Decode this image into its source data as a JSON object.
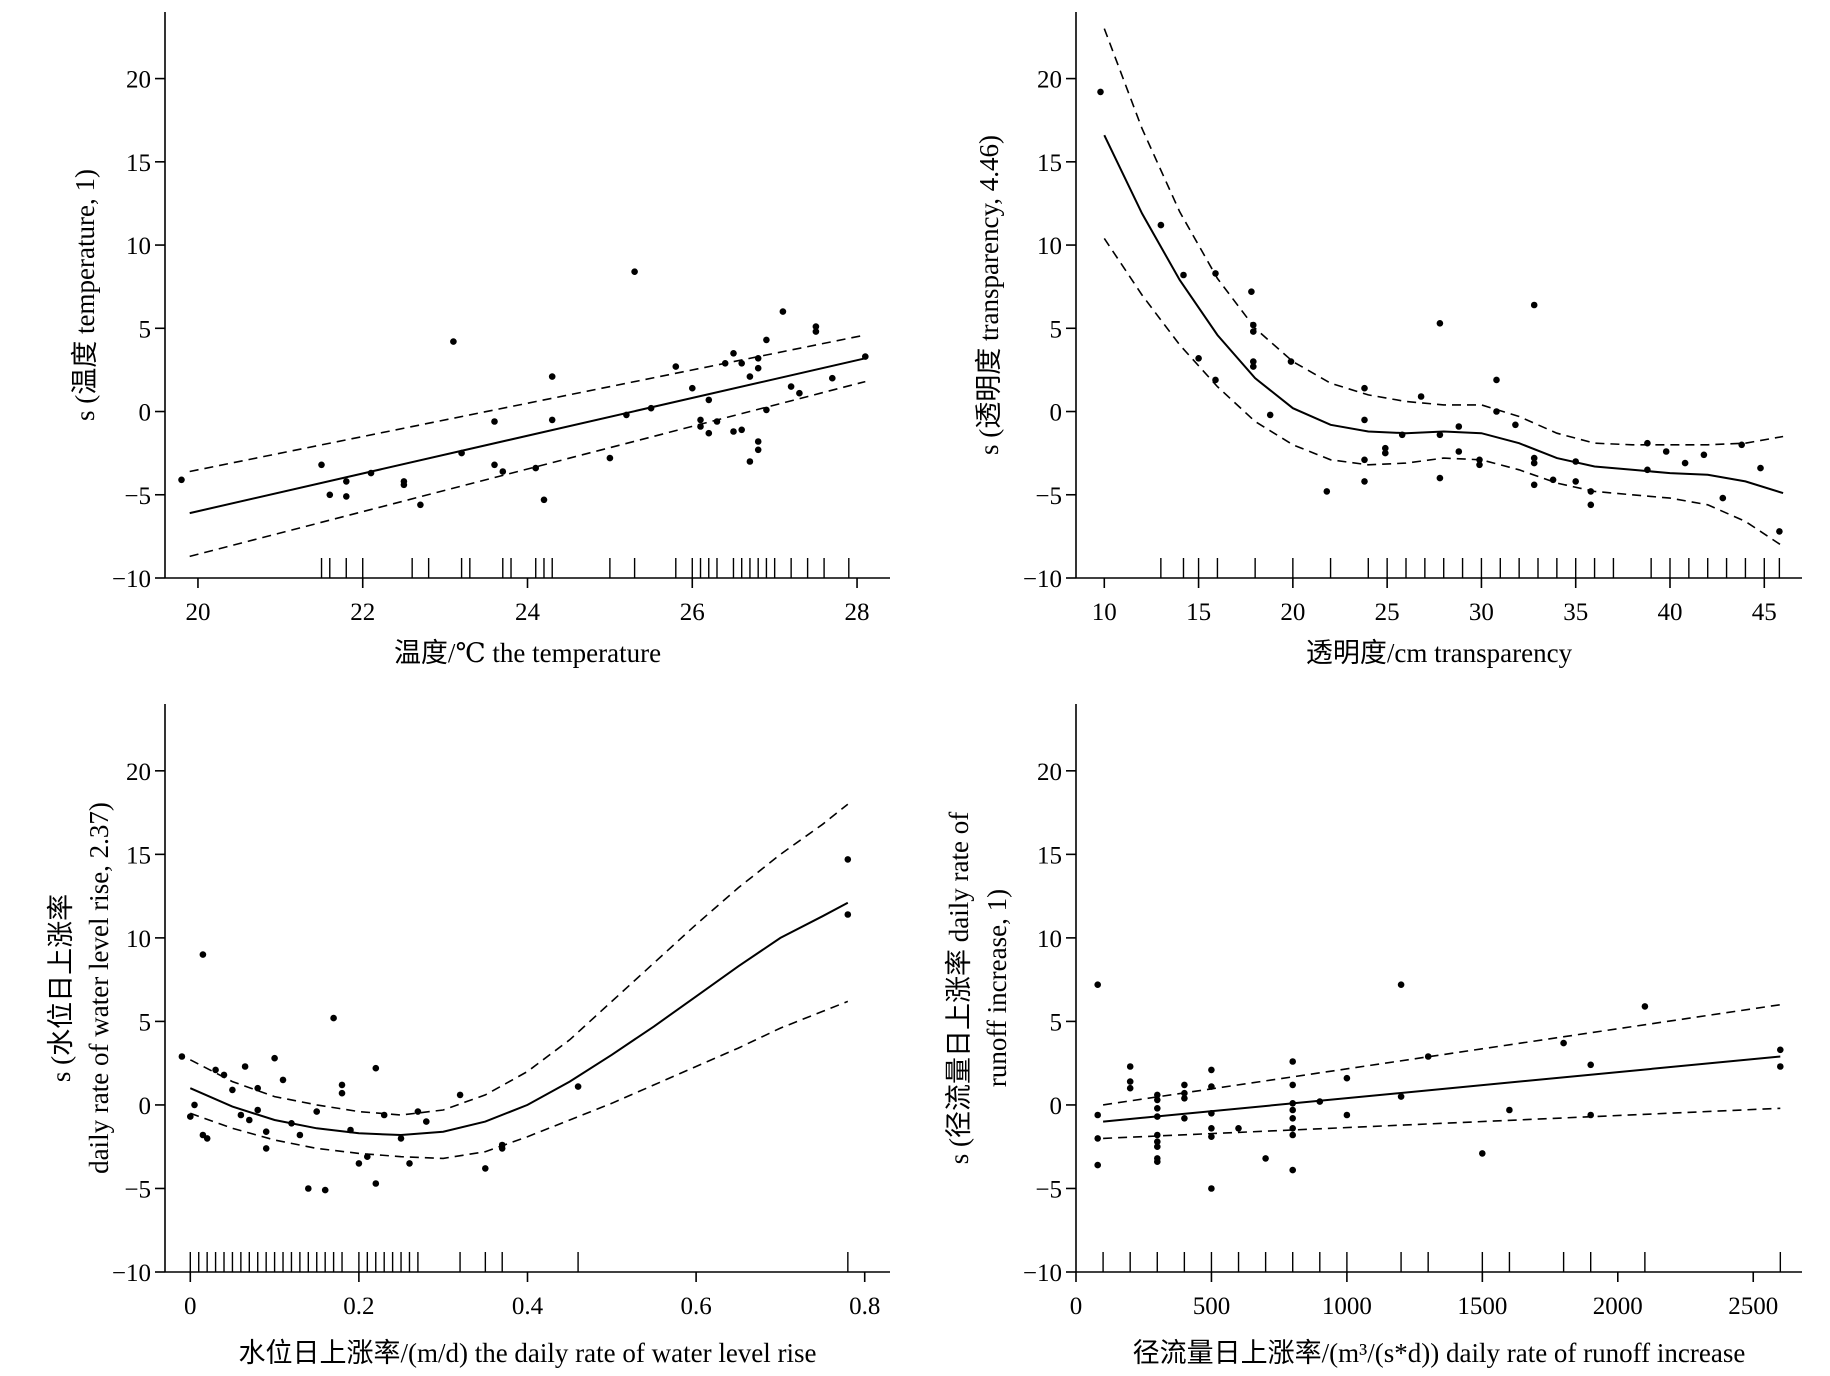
{
  "chart_data": [
    {
      "type": "scatter",
      "xlabel": "温度/℃ the temperature",
      "ylabel": "s (温度  temperature, 1)",
      "xlim": [
        19.6,
        28.4
      ],
      "ylim": [
        -10,
        24
      ],
      "xticks": [
        20,
        22,
        24,
        26,
        28
      ],
      "yticks": [
        -10,
        -5,
        0,
        5,
        10,
        15,
        20
      ],
      "smooth": {
        "x": [
          19.9,
          28.1
        ],
        "fit": [
          -6.1,
          3.2
        ],
        "upper": [
          -3.6,
          4.6
        ],
        "lower": [
          -8.7,
          1.8
        ]
      },
      "points": [
        [
          19.8,
          -4.1
        ],
        [
          21.5,
          -3.2
        ],
        [
          21.6,
          -5.0
        ],
        [
          21.8,
          -4.2
        ],
        [
          21.8,
          -5.1
        ],
        [
          22.1,
          -3.7
        ],
        [
          22.5,
          -4.2
        ],
        [
          22.5,
          -4.4
        ],
        [
          22.7,
          -5.6
        ],
        [
          23.1,
          4.2
        ],
        [
          23.2,
          -2.5
        ],
        [
          23.6,
          -0.6
        ],
        [
          23.6,
          -3.2
        ],
        [
          23.7,
          -3.6
        ],
        [
          24.1,
          -3.4
        ],
        [
          24.2,
          -5.3
        ],
        [
          24.3,
          2.1
        ],
        [
          24.3,
          -0.5
        ],
        [
          25.0,
          -2.8
        ],
        [
          25.2,
          -0.2
        ],
        [
          25.3,
          8.4
        ],
        [
          25.5,
          0.2
        ],
        [
          25.8,
          2.7
        ],
        [
          26.0,
          1.4
        ],
        [
          26.1,
          -0.5
        ],
        [
          26.1,
          -0.9
        ],
        [
          26.2,
          0.7
        ],
        [
          26.2,
          -1.3
        ],
        [
          26.3,
          -0.6
        ],
        [
          26.4,
          2.9
        ],
        [
          26.5,
          -1.2
        ],
        [
          26.5,
          3.5
        ],
        [
          26.6,
          -1.1
        ],
        [
          26.6,
          2.9
        ],
        [
          26.7,
          2.1
        ],
        [
          26.7,
          -3.0
        ],
        [
          26.8,
          3.2
        ],
        [
          26.8,
          2.6
        ],
        [
          26.8,
          -1.8
        ],
        [
          26.8,
          -2.3
        ],
        [
          26.9,
          4.3
        ],
        [
          26.9,
          0.1
        ],
        [
          27.1,
          6.0
        ],
        [
          27.2,
          1.5
        ],
        [
          27.3,
          1.1
        ],
        [
          27.5,
          5.1
        ],
        [
          27.5,
          4.8
        ],
        [
          27.7,
          2.0
        ],
        [
          28.1,
          3.3
        ]
      ],
      "rug": [
        21.5,
        21.6,
        21.8,
        22.0,
        22.6,
        22.8,
        23.2,
        23.3,
        23.7,
        23.8,
        24.1,
        24.2,
        24.3,
        25.0,
        25.3,
        25.8,
        26.0,
        26.1,
        26.2,
        26.3,
        26.5,
        26.6,
        26.7,
        26.8,
        26.9,
        27.0,
        27.2,
        27.4,
        27.6,
        27.9
      ]
    },
    {
      "type": "scatter",
      "xlabel": "透明度/cm transparency",
      "ylabel": "s (透明度 transparency, 4.46)",
      "xlim": [
        8.5,
        47.0
      ],
      "ylim": [
        -10,
        24
      ],
      "xticks": [
        10,
        15,
        20,
        25,
        30,
        35,
        40,
        45
      ],
      "yticks": [
        -10,
        -5,
        0,
        5,
        10,
        15,
        20
      ],
      "smooth": {
        "x": [
          10,
          12,
          14,
          16,
          18,
          20,
          22,
          24,
          26,
          28,
          30,
          32,
          34,
          36,
          38,
          40,
          42,
          44,
          46
        ],
        "fit": [
          16.6,
          11.9,
          7.9,
          4.6,
          2.0,
          0.2,
          -0.8,
          -1.2,
          -1.3,
          -1.2,
          -1.3,
          -1.9,
          -2.8,
          -3.3,
          -3.5,
          -3.7,
          -3.8,
          -4.2,
          -4.9
        ],
        "upper": [
          23.0,
          17.0,
          12.0,
          8.0,
          5.0,
          3.0,
          1.7,
          1.0,
          0.6,
          0.4,
          0.4,
          -0.3,
          -1.3,
          -1.9,
          -2.0,
          -2.0,
          -2.0,
          -1.9,
          -1.5
        ],
        "lower": [
          10.4,
          7.0,
          4.0,
          1.5,
          -0.6,
          -2.0,
          -2.9,
          -3.2,
          -3.1,
          -2.8,
          -2.9,
          -3.5,
          -4.3,
          -4.8,
          -5.0,
          -5.2,
          -5.6,
          -6.6,
          -8.1
        ]
      },
      "points": [
        [
          9.8,
          19.2
        ],
        [
          13.0,
          11.2
        ],
        [
          14.2,
          8.2
        ],
        [
          15.0,
          3.2
        ],
        [
          15.9,
          8.3
        ],
        [
          15.9,
          1.9
        ],
        [
          17.8,
          7.2
        ],
        [
          17.9,
          5.2
        ],
        [
          17.9,
          4.8
        ],
        [
          17.9,
          3.0
        ],
        [
          17.9,
          2.7
        ],
        [
          18.8,
          -0.2
        ],
        [
          19.9,
          3.0
        ],
        [
          21.8,
          -4.8
        ],
        [
          23.8,
          1.4
        ],
        [
          23.8,
          -0.5
        ],
        [
          23.8,
          -2.9
        ],
        [
          23.8,
          -4.2
        ],
        [
          24.9,
          -2.2
        ],
        [
          24.9,
          -2.5
        ],
        [
          25.8,
          -1.4
        ],
        [
          26.8,
          0.9
        ],
        [
          27.8,
          5.3
        ],
        [
          27.8,
          -1.4
        ],
        [
          27.8,
          -4.0
        ],
        [
          28.8,
          -0.9
        ],
        [
          28.8,
          -2.4
        ],
        [
          29.9,
          -2.9
        ],
        [
          29.9,
          -3.2
        ],
        [
          30.8,
          1.9
        ],
        [
          30.8,
          0.0
        ],
        [
          31.8,
          -0.8
        ],
        [
          32.8,
          6.4
        ],
        [
          32.8,
          -2.8
        ],
        [
          32.8,
          -3.1
        ],
        [
          32.8,
          -4.4
        ],
        [
          33.8,
          -4.1
        ],
        [
          35.0,
          -3.0
        ],
        [
          35.0,
          -4.2
        ],
        [
          35.8,
          -4.8
        ],
        [
          35.8,
          -5.6
        ],
        [
          38.8,
          -1.9
        ],
        [
          38.8,
          -3.5
        ],
        [
          39.8,
          -2.4
        ],
        [
          40.8,
          -3.1
        ],
        [
          41.8,
          -2.6
        ],
        [
          42.8,
          -5.2
        ],
        [
          43.8,
          -2.0
        ],
        [
          44.8,
          -3.4
        ],
        [
          45.8,
          -7.2
        ]
      ],
      "rug": [
        13.0,
        14.2,
        15.0,
        16.0,
        18.0,
        20.0,
        22.0,
        24.0,
        25.0,
        26.0,
        27.0,
        28.0,
        29.0,
        30.0,
        31.0,
        32.0,
        33.0,
        34.0,
        35.0,
        36.0,
        37.0,
        39.0,
        40.0,
        41.0,
        42.0,
        43.0,
        44.0,
        45.0,
        45.8
      ]
    },
    {
      "type": "scatter",
      "xlabel": "水位日上涨率/(m/d) the daily rate of water level rise",
      "ylabel": [
        "s (水位日上涨率",
        "daily rate of water level rise, 2.37)"
      ],
      "xlim": [
        -0.03,
        0.83
      ],
      "ylim": [
        -10,
        24
      ],
      "xticks": [
        0.0,
        0.2,
        0.4,
        0.6,
        0.8
      ],
      "ytick_labels_x": [
        "0",
        "0.2",
        "0.4",
        "0.6",
        "0.8"
      ],
      "yticks": [
        -10,
        -5,
        0,
        5,
        10,
        15,
        20
      ],
      "smooth": {
        "x": [
          0.0,
          0.05,
          0.1,
          0.15,
          0.2,
          0.25,
          0.3,
          0.35,
          0.4,
          0.45,
          0.5,
          0.55,
          0.6,
          0.65,
          0.7,
          0.75,
          0.78
        ],
        "fit": [
          1.0,
          -0.1,
          -0.9,
          -1.4,
          -1.7,
          -1.8,
          -1.6,
          -1.0,
          0.0,
          1.4,
          3.0,
          4.7,
          6.5,
          8.3,
          10.0,
          11.3,
          12.1
        ],
        "upper": [
          2.7,
          1.4,
          0.5,
          0.0,
          -0.4,
          -0.6,
          -0.3,
          0.6,
          2.0,
          3.9,
          6.2,
          8.5,
          10.8,
          13.0,
          15.0,
          16.8,
          18.0
        ],
        "lower": [
          -0.5,
          -1.4,
          -2.1,
          -2.6,
          -2.9,
          -3.1,
          -3.2,
          -2.8,
          -1.9,
          -0.9,
          0.1,
          1.2,
          2.3,
          3.4,
          4.6,
          5.6,
          6.2
        ]
      },
      "points": [
        [
          -0.01,
          2.9
        ],
        [
          0.0,
          -0.7
        ],
        [
          0.005,
          0.0
        ],
        [
          0.015,
          9.0
        ],
        [
          0.015,
          -1.8
        ],
        [
          0.02,
          -2.0
        ],
        [
          0.03,
          2.1
        ],
        [
          0.04,
          1.8
        ],
        [
          0.05,
          0.9
        ],
        [
          0.06,
          -0.6
        ],
        [
          0.065,
          2.3
        ],
        [
          0.07,
          -0.9
        ],
        [
          0.08,
          1.0
        ],
        [
          0.08,
          -0.3
        ],
        [
          0.09,
          -1.6
        ],
        [
          0.09,
          -2.6
        ],
        [
          0.1,
          2.8
        ],
        [
          0.11,
          1.5
        ],
        [
          0.12,
          -1.1
        ],
        [
          0.13,
          -1.8
        ],
        [
          0.14,
          -5.0
        ],
        [
          0.15,
          -0.4
        ],
        [
          0.16,
          -5.1
        ],
        [
          0.17,
          5.2
        ],
        [
          0.18,
          1.2
        ],
        [
          0.18,
          0.7
        ],
        [
          0.19,
          -1.5
        ],
        [
          0.2,
          -3.5
        ],
        [
          0.21,
          -3.1
        ],
        [
          0.22,
          2.2
        ],
        [
          0.22,
          -4.7
        ],
        [
          0.23,
          -0.6
        ],
        [
          0.25,
          -2.0
        ],
        [
          0.26,
          -3.5
        ],
        [
          0.27,
          -0.4
        ],
        [
          0.28,
          -1.0
        ],
        [
          0.32,
          0.6
        ],
        [
          0.35,
          -3.8
        ],
        [
          0.37,
          -2.4
        ],
        [
          0.37,
          -2.6
        ],
        [
          0.46,
          1.1
        ],
        [
          0.78,
          14.7
        ],
        [
          0.78,
          11.4
        ]
      ],
      "rug": [
        0.0,
        0.01,
        0.02,
        0.03,
        0.04,
        0.05,
        0.06,
        0.07,
        0.08,
        0.09,
        0.1,
        0.11,
        0.12,
        0.13,
        0.14,
        0.15,
        0.16,
        0.17,
        0.18,
        0.2,
        0.21,
        0.22,
        0.23,
        0.24,
        0.25,
        0.26,
        0.27,
        0.32,
        0.35,
        0.37,
        0.46,
        0.78
      ]
    },
    {
      "type": "scatter",
      "xlabel": "径流量日上涨率/(m³/(s*d)) daily rate of runoff increase",
      "ylabel": [
        "s (径流量日上涨率 daily rate of",
        "runoff increase, 1)"
      ],
      "xlim": [
        0,
        2680
      ],
      "ylim": [
        -10,
        24
      ],
      "xticks": [
        0,
        500,
        1000,
        1500,
        2000,
        2500
      ],
      "yticks": [
        -10,
        -5,
        0,
        5,
        10,
        15,
        20
      ],
      "smooth": {
        "x": [
          100,
          2600
        ],
        "fit": [
          -1.0,
          2.9
        ],
        "upper": [
          0.0,
          6.0
        ],
        "lower": [
          -2.0,
          -0.2
        ]
      },
      "points": [
        [
          80,
          7.2
        ],
        [
          80,
          -0.6
        ],
        [
          80,
          -2.0
        ],
        [
          80,
          -3.6
        ],
        [
          200,
          2.3
        ],
        [
          200,
          1.4
        ],
        [
          200,
          1.0
        ],
        [
          300,
          0.6
        ],
        [
          300,
          0.3
        ],
        [
          300,
          -0.2
        ],
        [
          300,
          -0.7
        ],
        [
          300,
          -1.8
        ],
        [
          300,
          -2.2
        ],
        [
          300,
          -2.5
        ],
        [
          300,
          -3.2
        ],
        [
          300,
          -3.4
        ],
        [
          400,
          1.2
        ],
        [
          400,
          0.7
        ],
        [
          400,
          0.4
        ],
        [
          400,
          -0.8
        ],
        [
          500,
          2.1
        ],
        [
          500,
          1.1
        ],
        [
          500,
          -0.5
        ],
        [
          500,
          -1.4
        ],
        [
          500,
          -1.9
        ],
        [
          500,
          -5.0
        ],
        [
          600,
          -1.4
        ],
        [
          700,
          -3.2
        ],
        [
          800,
          2.6
        ],
        [
          800,
          1.2
        ],
        [
          800,
          0.1
        ],
        [
          800,
          -0.3
        ],
        [
          800,
          -0.8
        ],
        [
          800,
          -1.4
        ],
        [
          800,
          -1.8
        ],
        [
          800,
          -3.9
        ],
        [
          900,
          0.2
        ],
        [
          1000,
          1.6
        ],
        [
          1000,
          -0.6
        ],
        [
          1200,
          7.2
        ],
        [
          1200,
          0.5
        ],
        [
          1300,
          2.9
        ],
        [
          1500,
          -2.9
        ],
        [
          1600,
          -0.3
        ],
        [
          1800,
          3.7
        ],
        [
          1900,
          2.4
        ],
        [
          1900,
          -0.6
        ],
        [
          2100,
          5.9
        ],
        [
          2600,
          3.3
        ],
        [
          2600,
          2.3
        ]
      ],
      "rug": [
        100,
        200,
        300,
        400,
        500,
        600,
        700,
        800,
        900,
        1000,
        1200,
        1300,
        1500,
        1600,
        1800,
        1900,
        2100,
        2600
      ]
    }
  ]
}
